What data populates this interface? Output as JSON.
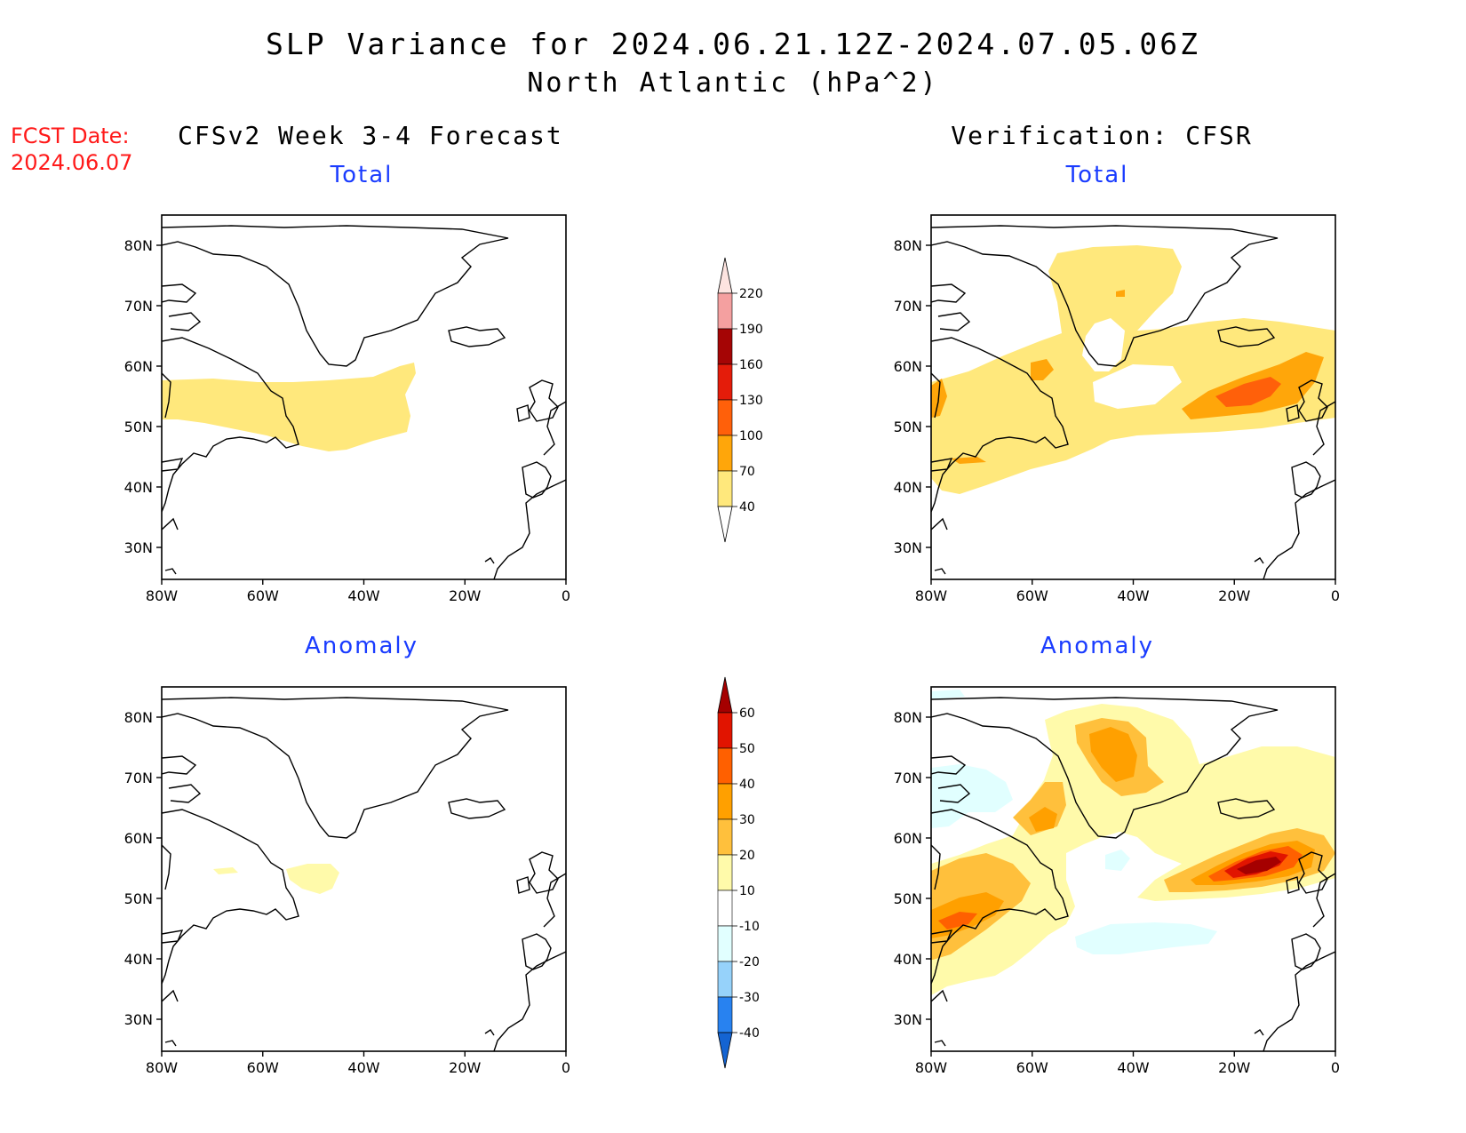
{
  "title": {
    "line1": "SLP Variance for 2024.06.21.12Z-2024.07.05.06Z",
    "line2": "North Atlantic (hPa^2)"
  },
  "fcst_date": {
    "label": "FCST Date:",
    "value": "2024.06.07"
  },
  "columns": {
    "left": "CFSv2 Week 3-4 Forecast",
    "right": "Verification: CFSR"
  },
  "panels": {
    "tl": "Total",
    "tr": "Total",
    "bl": "Anomaly",
    "br": "Anomaly"
  },
  "axes": {
    "lat_labels": [
      "80N",
      "70N",
      "60N",
      "50N",
      "40N",
      "30N"
    ],
    "lon_labels": [
      "80W",
      "60W",
      "40W",
      "20W",
      "0"
    ]
  },
  "colorbar_total": {
    "levels": [
      "40",
      "70",
      "100",
      "130",
      "160",
      "190",
      "220"
    ],
    "colors": [
      "#ffe87c",
      "#ffa60a",
      "#ff600a",
      "#e41c0a",
      "#a50505",
      "#f4a0a0",
      "#fde4e0"
    ]
  },
  "colorbar_anomaly": {
    "levels": [
      "-40",
      "-30",
      "-20",
      "-10",
      "10",
      "20",
      "30",
      "40",
      "50",
      "60"
    ],
    "colors": [
      "#1464d2",
      "#2882f0",
      "#96d2fa",
      "#e1ffff",
      "#ffffff",
      "#fffaaa",
      "#ffc03c",
      "#ffa000",
      "#ff6000",
      "#e11400",
      "#a50000"
    ]
  },
  "colors": {
    "title": "#000000",
    "fcst_date": "#ff1a1a",
    "panel_subtitle": "#1a3cff"
  }
}
